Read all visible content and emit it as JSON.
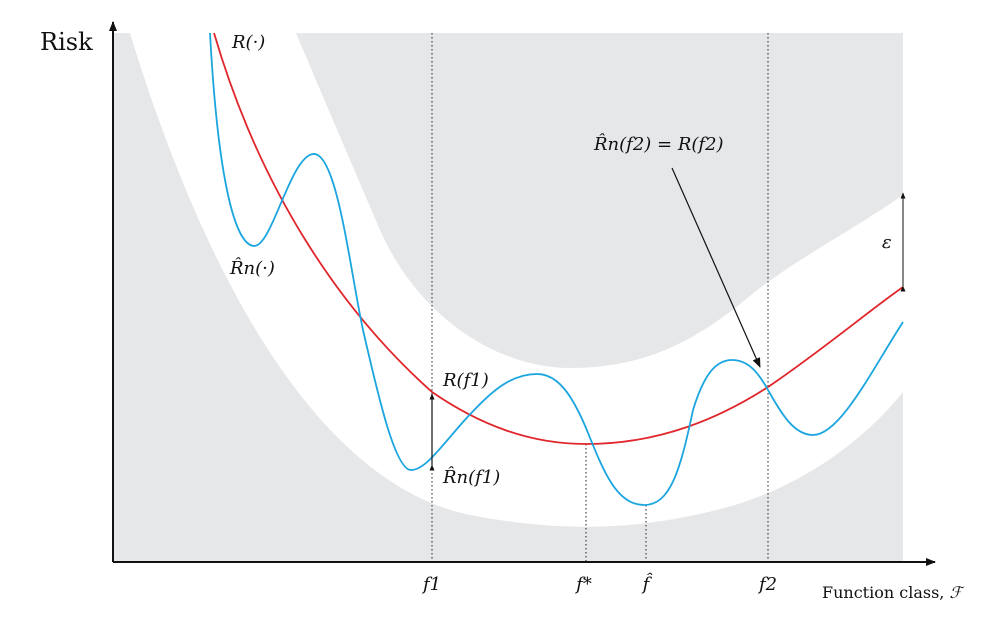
{
  "axes": {
    "y_label": "Risk",
    "x_label": "Function class, ",
    "x_label_symbol": "ℱ"
  },
  "curves": {
    "true_risk": {
      "label": "R(·)",
      "color": "#e0262b"
    },
    "empirical_risk": {
      "label": "R̂n(·)",
      "color": "#1aa5df"
    }
  },
  "band": {
    "color": "#e6e7e9",
    "width_label": "ε"
  },
  "annotations": {
    "true_risk_at_f1": "R(f1)",
    "empirical_risk_at_f1": "R̂n(f1)",
    "equality_at_f2": "R̂n(f2) = R(f2)"
  },
  "ticks": [
    "f1",
    "f*",
    "f̂",
    "f2"
  ]
}
